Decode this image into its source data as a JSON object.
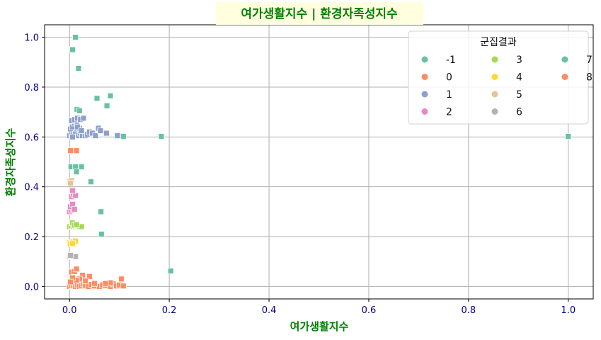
{
  "chart_data": {
    "type": "scatter",
    "title": "여가생활지수 | 환경자족성지수",
    "xlabel": "여가생활지수",
    "ylabel": "환경자족성지수",
    "xlim": [
      -0.05,
      1.05
    ],
    "ylim": [
      -0.05,
      1.05
    ],
    "xticks": [
      "0.0",
      "0.2",
      "0.4",
      "0.6",
      "0.8",
      "1.0"
    ],
    "yticks": [
      "0.0",
      "0.2",
      "0.4",
      "0.6",
      "0.8",
      "1.0"
    ],
    "grid": true,
    "legend": {
      "title": "군집결과",
      "placement": "top-right",
      "columns": 3
    },
    "series": [
      {
        "name": "-1",
        "color": "#66c2a5",
        "points": [
          [
            0.012,
            1.0
          ],
          [
            0.006,
            0.95
          ],
          [
            0.018,
            0.875
          ],
          [
            0.055,
            0.755
          ],
          [
            0.082,
            0.765
          ],
          [
            0.075,
            0.725
          ],
          [
            0.015,
            0.71
          ],
          [
            0.02,
            0.705
          ],
          [
            0.1,
            0.605
          ],
          [
            0.108,
            0.602
          ],
          [
            0.184,
            0.602
          ],
          [
            1.0,
            0.602
          ],
          [
            0.003,
            0.48
          ],
          [
            0.012,
            0.48
          ],
          [
            0.024,
            0.48
          ],
          [
            0.014,
            0.46
          ],
          [
            0.043,
            0.42
          ],
          [
            0.063,
            0.3
          ],
          [
            0.064,
            0.21
          ],
          [
            0.203,
            0.062
          ]
        ]
      },
      {
        "name": "0",
        "color": "#fc8d62",
        "points": [
          [
            0.0,
            0.0
          ],
          [
            0.004,
            0.002
          ],
          [
            0.008,
            0.004
          ],
          [
            0.012,
            0.0
          ],
          [
            0.016,
            0.006
          ],
          [
            0.02,
            0.0
          ],
          [
            0.024,
            0.002
          ],
          [
            0.028,
            0.01
          ],
          [
            0.032,
            0.004
          ],
          [
            0.038,
            0.0
          ],
          [
            0.044,
            0.008
          ],
          [
            0.05,
            0.002
          ],
          [
            0.06,
            0.0
          ],
          [
            0.066,
            0.006
          ],
          [
            0.072,
            0.004
          ],
          [
            0.082,
            0.0
          ],
          [
            0.088,
            0.01
          ],
          [
            0.094,
            0.002
          ],
          [
            0.1,
            0.006
          ],
          [
            0.108,
            0.002
          ],
          [
            0.026,
            0.045
          ],
          [
            0.04,
            0.04
          ],
          [
            0.032,
            0.022
          ],
          [
            0.004,
            0.058
          ],
          [
            0.01,
            0.06
          ],
          [
            0.014,
            0.07
          ],
          [
            0.02,
            0.03
          ],
          [
            0.014,
            0.025
          ],
          [
            0.006,
            0.035
          ],
          [
            0.002,
            0.018
          ],
          [
            0.082,
            0.015
          ],
          [
            0.104,
            0.03
          ],
          [
            0.05,
            0.012
          ],
          [
            0.072,
            0.012
          ],
          [
            0.008,
            0.545
          ],
          [
            0.014,
            0.545
          ],
          [
            0.002,
            0.545
          ]
        ]
      },
      {
        "name": "1",
        "color": "#8da0cb",
        "points": [
          [
            0.0,
            0.605
          ],
          [
            0.004,
            0.61
          ],
          [
            0.008,
            0.62
          ],
          [
            0.012,
            0.625
          ],
          [
            0.002,
            0.632
          ],
          [
            0.006,
            0.64
          ],
          [
            0.01,
            0.655
          ],
          [
            0.014,
            0.66
          ],
          [
            0.004,
            0.665
          ],
          [
            0.01,
            0.67
          ],
          [
            0.016,
            0.675
          ],
          [
            0.022,
            0.67
          ],
          [
            0.028,
            0.675
          ],
          [
            0.012,
            0.612
          ],
          [
            0.018,
            0.605
          ],
          [
            0.022,
            0.615
          ],
          [
            0.026,
            0.605
          ],
          [
            0.032,
            0.605
          ],
          [
            0.036,
            0.61
          ],
          [
            0.04,
            0.62
          ],
          [
            0.046,
            0.615
          ],
          [
            0.052,
            0.605
          ],
          [
            0.058,
            0.635
          ],
          [
            0.062,
            0.625
          ],
          [
            0.074,
            0.615
          ],
          [
            0.096,
            0.605
          ],
          [
            0.006,
            0.6
          ],
          [
            0.02,
            0.635
          ],
          [
            0.016,
            0.64
          ],
          [
            0.024,
            0.625
          ]
        ]
      },
      {
        "name": "2",
        "color": "#e78ac3",
        "points": [
          [
            0.0,
            0.3
          ],
          [
            0.004,
            0.305
          ],
          [
            0.008,
            0.31
          ],
          [
            0.002,
            0.32
          ],
          [
            0.006,
            0.33
          ],
          [
            0.004,
            0.36
          ],
          [
            0.008,
            0.37
          ],
          [
            0.012,
            0.365
          ],
          [
            0.006,
            0.385
          ],
          [
            0.01,
            0.31
          ]
        ]
      },
      {
        "name": "3",
        "color": "#a6d854",
        "points": [
          [
            0.0,
            0.24
          ],
          [
            0.004,
            0.242
          ],
          [
            0.008,
            0.24
          ],
          [
            0.012,
            0.24
          ],
          [
            0.016,
            0.242
          ],
          [
            0.02,
            0.24
          ],
          [
            0.024,
            0.24
          ],
          [
            0.006,
            0.255
          ],
          [
            0.01,
            0.245
          ],
          [
            0.014,
            0.248
          ]
        ]
      },
      {
        "name": "4",
        "color": "#ffd92f",
        "points": [
          [
            0.0,
            0.175
          ],
          [
            0.004,
            0.178
          ],
          [
            0.008,
            0.18
          ],
          [
            0.012,
            0.182
          ],
          [
            0.002,
            0.17
          ],
          [
            0.006,
            0.172
          ]
        ]
      },
      {
        "name": "5",
        "color": "#e5c494",
        "points": [
          [
            0.0,
            0.42
          ],
          [
            0.004,
            0.425
          ],
          [
            0.002,
            0.415
          ]
        ]
      },
      {
        "name": "6",
        "color": "#b3b3b3",
        "points": [
          [
            0.0,
            0.12
          ],
          [
            0.004,
            0.122
          ],
          [
            0.008,
            0.12
          ],
          [
            0.012,
            0.12
          ],
          [
            0.002,
            0.125
          ]
        ]
      },
      {
        "name": "7",
        "color": "#66c2a5",
        "points": []
      },
      {
        "name": "8",
        "color": "#fc8d62",
        "points": []
      }
    ]
  }
}
